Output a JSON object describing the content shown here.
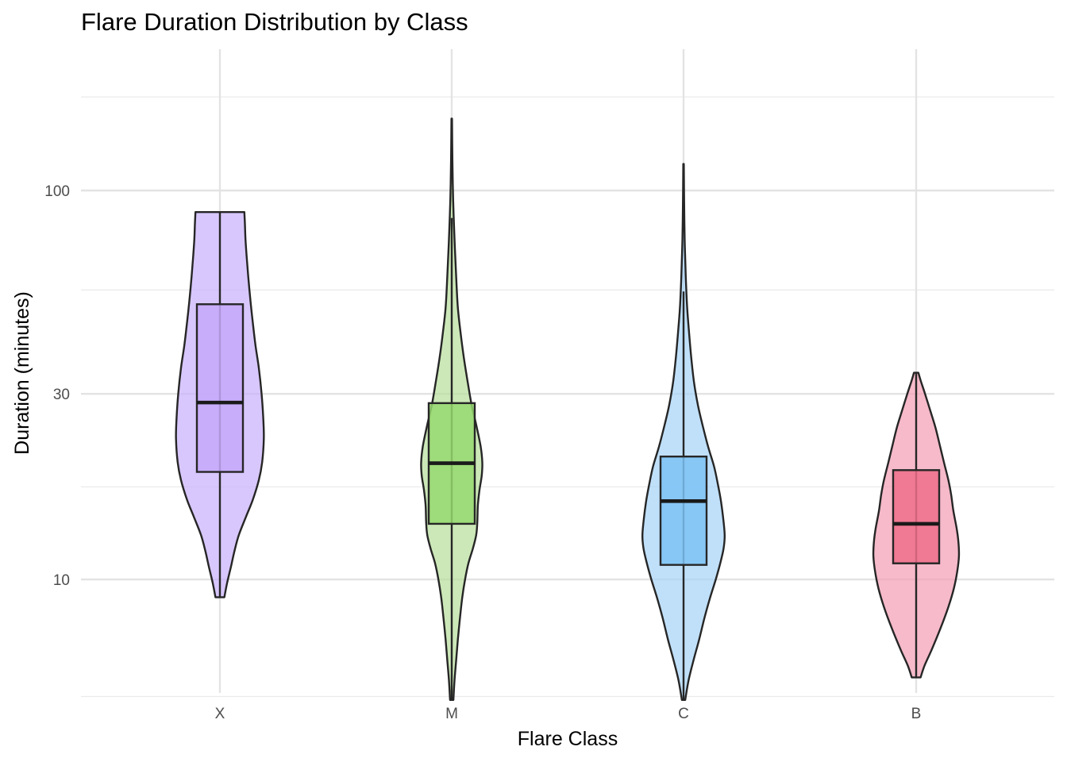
{
  "chart_data": {
    "type": "violin",
    "title": "Flare Duration Distribution by Class",
    "xlabel": "Flare Class",
    "ylabel": "Duration (minutes)",
    "y_scale": "log10",
    "y_ticks": [
      10,
      30,
      100
    ],
    "y_minor_gridlines": [
      5,
      17.3,
      55.5,
      174
    ],
    "ylim": [
      4.6,
      200
    ],
    "grid": true,
    "legend": "none",
    "categories": [
      "X",
      "M",
      "C",
      "B"
    ],
    "series": [
      {
        "category": "X",
        "color": "#c9b1fb",
        "box_color": "#c6a8fa",
        "min": 9.0,
        "q1": 18.9,
        "median": 28.5,
        "q3": 51.0,
        "max": 88.0,
        "violin_range": [
          9.0,
          88.0
        ],
        "density_profile": [
          [
            9.0,
            0.08
          ],
          [
            9.8,
            0.13
          ],
          [
            10.8,
            0.2
          ],
          [
            11.8,
            0.26
          ],
          [
            13.0,
            0.34
          ],
          [
            14.5,
            0.47
          ],
          [
            16.0,
            0.59
          ],
          [
            18.0,
            0.7
          ],
          [
            20.0,
            0.76
          ],
          [
            23.0,
            0.79
          ],
          [
            26.0,
            0.78
          ],
          [
            30.0,
            0.75
          ],
          [
            35.0,
            0.7
          ],
          [
            40.0,
            0.64
          ],
          [
            46.0,
            0.59
          ],
          [
            52.0,
            0.55
          ],
          [
            60.0,
            0.51
          ],
          [
            68.0,
            0.48
          ],
          [
            75.0,
            0.46
          ],
          [
            82.0,
            0.45
          ],
          [
            88.0,
            0.44
          ]
        ]
      },
      {
        "category": "M",
        "color": "#b9df9c",
        "box_color": "#95d86f",
        "min": 4.9,
        "q1": 13.9,
        "median": 19.9,
        "q3": 28.4,
        "max": 85.0,
        "violin_range": [
          4.9,
          153.0
        ],
        "density_profile": [
          [
            4.9,
            0.03
          ],
          [
            5.5,
            0.05
          ],
          [
            6.2,
            0.08
          ],
          [
            7.0,
            0.11
          ],
          [
            8.0,
            0.15
          ],
          [
            9.0,
            0.19
          ],
          [
            10.0,
            0.24
          ],
          [
            11.0,
            0.3
          ],
          [
            12.0,
            0.38
          ],
          [
            13.0,
            0.44
          ],
          [
            14.0,
            0.46
          ],
          [
            15.5,
            0.47
          ],
          [
            17.0,
            0.5
          ],
          [
            18.5,
            0.54
          ],
          [
            20.0,
            0.55
          ],
          [
            22.0,
            0.52
          ],
          [
            25.0,
            0.44
          ],
          [
            28.0,
            0.36
          ],
          [
            32.0,
            0.29
          ],
          [
            37.0,
            0.22
          ],
          [
            43.0,
            0.16
          ],
          [
            50.0,
            0.11
          ],
          [
            60.0,
            0.08
          ],
          [
            75.0,
            0.05
          ],
          [
            95.0,
            0.025
          ],
          [
            120.0,
            0.012
          ],
          [
            153.0,
            0.005
          ]
        ]
      },
      {
        "category": "C",
        "color": "#a7d4f8",
        "box_color": "#7dc2f4",
        "min": 4.9,
        "q1": 10.9,
        "median": 15.9,
        "q3": 20.7,
        "max": 55.0,
        "violin_range": [
          4.9,
          117.0
        ],
        "density_profile": [
          [
            4.9,
            0.03
          ],
          [
            5.5,
            0.09
          ],
          [
            6.2,
            0.18
          ],
          [
            7.0,
            0.28
          ],
          [
            8.0,
            0.38
          ],
          [
            9.0,
            0.48
          ],
          [
            10.0,
            0.58
          ],
          [
            11.0,
            0.66
          ],
          [
            12.0,
            0.72
          ],
          [
            13.0,
            0.74
          ],
          [
            14.5,
            0.71
          ],
          [
            16.0,
            0.67
          ],
          [
            17.5,
            0.62
          ],
          [
            19.5,
            0.55
          ],
          [
            22.0,
            0.44
          ],
          [
            25.0,
            0.34
          ],
          [
            28.0,
            0.26
          ],
          [
            32.0,
            0.19
          ],
          [
            37.0,
            0.14
          ],
          [
            43.0,
            0.1
          ],
          [
            50.0,
            0.065
          ],
          [
            60.0,
            0.04
          ],
          [
            75.0,
            0.02
          ],
          [
            95.0,
            0.01
          ],
          [
            117.0,
            0.005
          ]
        ]
      },
      {
        "category": "B",
        "color": "#f3a0b5",
        "box_color": "#ee6d8a",
        "min": 5.6,
        "q1": 11.0,
        "median": 13.9,
        "q3": 19.1,
        "max": 34.0,
        "violin_range": [
          5.6,
          34.0
        ],
        "density_profile": [
          [
            5.6,
            0.08
          ],
          [
            6.0,
            0.15
          ],
          [
            6.6,
            0.28
          ],
          [
            7.5,
            0.44
          ],
          [
            8.5,
            0.58
          ],
          [
            9.5,
            0.68
          ],
          [
            10.5,
            0.74
          ],
          [
            11.5,
            0.77
          ],
          [
            12.5,
            0.76
          ],
          [
            13.5,
            0.73
          ],
          [
            15.0,
            0.67
          ],
          [
            16.5,
            0.63
          ],
          [
            18.0,
            0.58
          ],
          [
            20.0,
            0.5
          ],
          [
            22.0,
            0.43
          ],
          [
            24.5,
            0.35
          ],
          [
            27.0,
            0.26
          ],
          [
            30.0,
            0.16
          ],
          [
            32.5,
            0.08
          ],
          [
            34.0,
            0.04
          ]
        ]
      }
    ]
  }
}
